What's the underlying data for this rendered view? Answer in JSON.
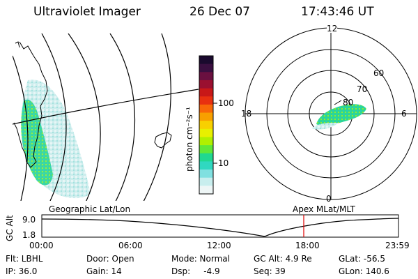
{
  "header": {
    "title": "Ultraviolet Imager",
    "date": "26 Dec 07",
    "time": "17:43:46 UT"
  },
  "map_panel": {
    "label": "Geographic Lat/Lon"
  },
  "polar_panel": {
    "label": "Apex MLat/MLT",
    "mlt_labels": [
      "12",
      "18",
      "6",
      "0"
    ],
    "lat_labels": [
      "60",
      "70",
      "80"
    ]
  },
  "colorbar": {
    "unit_label": "photon cm⁻²s⁻¹",
    "tick_labels": [
      "100",
      "10"
    ],
    "colors": [
      "#1a0a2e",
      "#3a0f40",
      "#6a1040",
      "#9a1030",
      "#c81818",
      "#e83010",
      "#f86808",
      "#f8a000",
      "#f8d000",
      "#e8f000",
      "#b0f000",
      "#60e838",
      "#20d890",
      "#30d8c0",
      "#80e0e0",
      "#c8eeee",
      "#eef6f6"
    ]
  },
  "timeline": {
    "axis_label": "GC Alt",
    "y_ticks": [
      "9.0",
      "1.8"
    ],
    "x_ticks": [
      "00:00",
      "06:00",
      "12:00",
      "18:00",
      "23:59"
    ],
    "marker_color": "#e00000"
  },
  "footer": {
    "filter": "Flt: LBHL",
    "ip": "IP: 36.0",
    "door": "Door: Open",
    "gain": "Gain: 14",
    "mode": "Mode: Normal",
    "dsp": "Dsp:     -4.9",
    "gc_alt": "GC Alt: 4.9 Re",
    "seq": "Seq: 39",
    "glat": "GLat: -56.5",
    "glon": "GLon: 140.6"
  }
}
